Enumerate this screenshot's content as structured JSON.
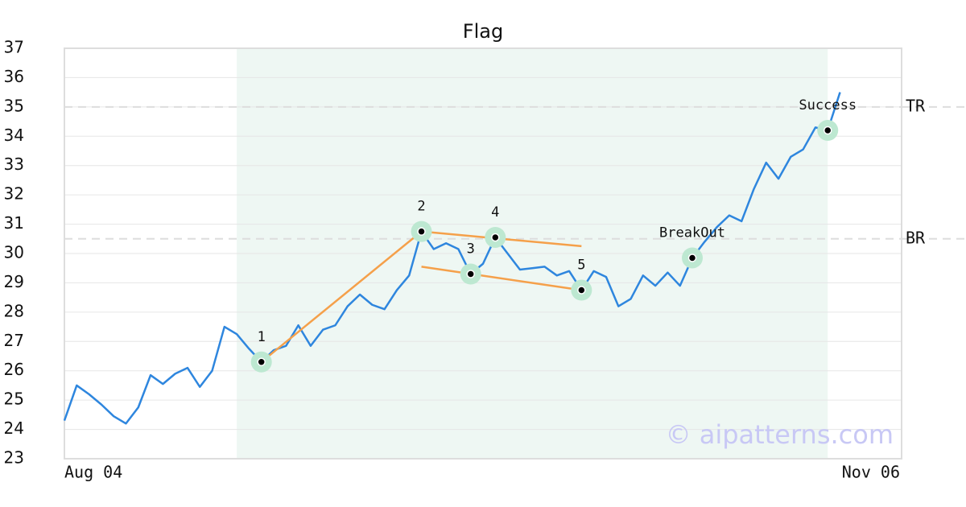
{
  "chart_data": {
    "type": "line",
    "title": "Flag",
    "categories": [
      "Aug 04",
      null,
      null,
      null,
      null,
      null,
      null,
      null,
      null,
      null,
      null,
      null,
      null,
      null,
      null,
      null,
      null,
      null,
      null,
      null,
      null,
      null,
      null,
      null,
      null,
      null,
      null,
      null,
      null,
      null,
      null,
      null,
      null,
      null,
      null,
      null,
      null,
      null,
      null,
      null,
      null,
      null,
      null,
      null,
      null,
      null,
      null,
      null,
      null,
      null,
      null,
      null,
      null,
      null,
      null,
      null,
      null,
      null,
      null,
      null,
      null,
      null,
      null,
      "Nov 06"
    ],
    "series": [
      {
        "color": "#2e86de",
        "values": [
          24.3,
          25.5,
          25.2,
          24.85,
          24.45,
          24.2,
          24.75,
          25.85,
          25.55,
          25.9,
          26.1,
          25.45,
          26.0,
          27.5,
          27.25,
          26.75,
          26.3,
          26.7,
          26.85,
          27.55,
          26.85,
          27.4,
          27.55,
          28.2,
          28.6,
          28.25,
          28.1,
          28.75,
          29.25,
          30.75,
          30.15,
          30.35,
          30.15,
          29.3,
          29.65,
          30.55,
          30.0,
          29.45,
          29.5,
          29.55,
          29.25,
          29.4,
          28.75,
          29.4,
          29.2,
          28.2,
          28.45,
          29.25,
          28.9,
          29.35,
          28.9,
          29.85,
          30.4,
          30.9,
          31.3,
          31.1,
          32.2,
          33.1,
          32.55,
          33.3,
          33.55,
          34.3,
          34.2,
          35.5
        ]
      }
    ],
    "shaded": {
      "x": [
        14,
        62
      ],
      "color": "#eef7f3"
    },
    "points": [
      {
        "label": "1",
        "x": 16,
        "value": 26.3
      },
      {
        "label": "2",
        "x": 29,
        "value": 30.75
      },
      {
        "label": "3",
        "x": 33,
        "value": 29.3
      },
      {
        "label": "4",
        "x": 35,
        "value": 30.55
      },
      {
        "label": "5",
        "x": 42,
        "value": 28.75
      },
      {
        "label": "BreakOut",
        "x": 51,
        "value": 29.85
      },
      {
        "label": "Success",
        "x": 62,
        "value": 34.2
      }
    ],
    "trendline_color": "#f5a04a",
    "trendlines": [
      {
        "x": [
          16,
          29
        ],
        "values": [
          26.3,
          30.75
        ]
      },
      {
        "x": [
          29,
          42
        ],
        "values": [
          30.75,
          30.25
        ]
      },
      {
        "x": [
          29,
          42
        ],
        "values": [
          29.55,
          28.75
        ]
      }
    ],
    "levels": [
      {
        "label": "TR",
        "value": 35
      },
      {
        "label": "BR",
        "value": 30.5
      }
    ],
    "ylim": [
      23,
      37
    ],
    "yticks": [
      23,
      24,
      25,
      26,
      27,
      28,
      29,
      30,
      31,
      32,
      33,
      34,
      35,
      36,
      37
    ],
    "grid": true,
    "watermark": "© aipatterns.com"
  }
}
